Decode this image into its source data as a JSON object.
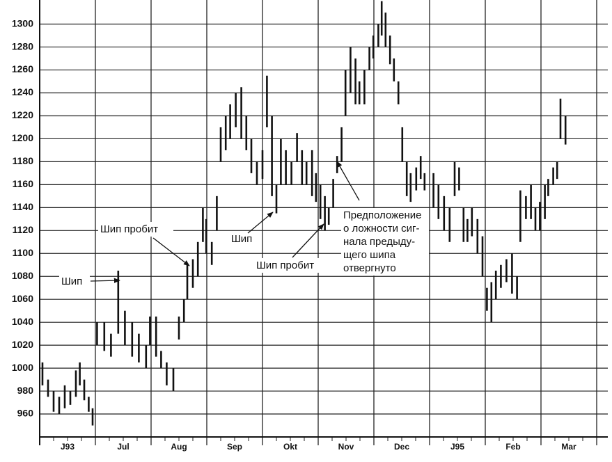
{
  "chart_data": {
    "type": "range_bar",
    "categories": [
      "J93",
      "Jul",
      "Aug",
      "Sep",
      "Okt",
      "Nov",
      "Dec",
      "J95",
      "Feb",
      "Mar"
    ],
    "xlim": [
      0,
      10.2
    ],
    "ylim": [
      940,
      1321
    ],
    "yticks": [
      960,
      980,
      1000,
      1020,
      1040,
      1060,
      1080,
      1100,
      1120,
      1140,
      1160,
      1180,
      1200,
      1220,
      1240,
      1260,
      1280,
      1300
    ],
    "grid": true,
    "color": "#111111",
    "x": [
      0.05,
      0.15,
      0.25,
      0.35,
      0.45,
      0.55,
      0.65,
      0.72,
      0.8,
      0.88,
      0.95,
      1.03,
      1.16,
      1.28,
      1.41,
      1.53,
      1.66,
      1.78,
      1.91,
      1.98,
      2.09,
      2.18,
      2.28,
      2.4,
      2.5,
      2.59,
      2.65,
      2.75,
      2.84,
      2.93,
      2.99,
      3.09,
      3.18,
      3.25,
      3.34,
      3.42,
      3.52,
      3.62,
      3.71,
      3.8,
      3.9,
      4.0,
      4.08,
      4.17,
      4.25,
      4.33,
      4.42,
      4.52,
      4.62,
      4.71,
      4.79,
      4.89,
      4.96,
      5.04,
      5.12,
      5.19,
      5.27,
      5.34,
      5.42,
      5.49,
      5.58,
      5.67,
      5.74,
      5.83,
      5.92,
      5.99,
      6.08,
      6.14,
      6.21,
      6.29,
      6.36,
      6.44,
      6.51,
      6.59,
      6.66,
      6.76,
      6.84,
      6.91,
      7.07,
      7.16,
      7.26,
      7.36,
      7.45,
      7.53,
      7.61,
      7.68,
      7.76,
      7.86,
      7.95,
      8.03,
      8.11,
      8.19,
      8.28,
      8.38,
      8.48,
      8.57,
      8.63,
      8.73,
      8.82,
      8.9,
      8.98,
      9.07,
      9.13,
      9.22,
      9.29,
      9.35,
      9.44
    ],
    "high": [
      1005,
      990,
      980,
      975,
      985,
      980,
      998,
      1005,
      990,
      975,
      965,
      1040,
      1040,
      1030,
      1085,
      1050,
      1040,
      1030,
      1020,
      1045,
      1045,
      1015,
      1005,
      1000,
      1045,
      1060,
      1090,
      1095,
      1110,
      1140,
      1130,
      1110,
      1150,
      1210,
      1220,
      1230,
      1240,
      1245,
      1220,
      1200,
      1180,
      1190,
      1255,
      1220,
      1160,
      1200,
      1190,
      1180,
      1205,
      1190,
      1180,
      1190,
      1170,
      1160,
      1150,
      1140,
      1165,
      1185,
      1210,
      1260,
      1280,
      1270,
      1250,
      1260,
      1280,
      1290,
      1300,
      1320,
      1310,
      1290,
      1270,
      1250,
      1210,
      1180,
      1170,
      1175,
      1185,
      1170,
      1170,
      1160,
      1150,
      1140,
      1180,
      1175,
      1140,
      1130,
      1140,
      1130,
      1115,
      1070,
      1075,
      1085,
      1090,
      1095,
      1100,
      1080,
      1155,
      1150,
      1160,
      1140,
      1145,
      1160,
      1165,
      1175,
      1180,
      1235,
      1220
    ],
    "low": [
      985,
      975,
      962,
      960,
      965,
      968,
      975,
      985,
      972,
      962,
      950,
      1020,
      1015,
      1010,
      1030,
      1020,
      1010,
      1005,
      1000,
      1020,
      1010,
      1000,
      985,
      980,
      1025,
      1040,
      1060,
      1070,
      1080,
      1110,
      1100,
      1090,
      1120,
      1180,
      1190,
      1200,
      1210,
      1200,
      1190,
      1170,
      1160,
      1165,
      1210,
      1150,
      1135,
      1160,
      1160,
      1160,
      1180,
      1160,
      1160,
      1150,
      1145,
      1130,
      1120,
      1125,
      1140,
      1170,
      1180,
      1220,
      1240,
      1230,
      1230,
      1230,
      1260,
      1270,
      1280,
      1290,
      1280,
      1265,
      1250,
      1230,
      1180,
      1150,
      1145,
      1155,
      1165,
      1155,
      1140,
      1130,
      1120,
      1110,
      1150,
      1155,
      1110,
      1110,
      1115,
      1100,
      1080,
      1050,
      1040,
      1060,
      1070,
      1075,
      1065,
      1060,
      1110,
      1130,
      1130,
      1120,
      1120,
      1130,
      1150,
      1160,
      1165,
      1200,
      1195
    ],
    "annotations": [
      {
        "lines": [
          "Шип"
        ]
      },
      {
        "lines": [
          "Шип пробит"
        ]
      },
      {
        "lines": [
          "Шип"
        ]
      },
      {
        "lines": [
          "Шип пробит"
        ]
      },
      {
        "lines": [
          "Предположение",
          "о ложности сиг-",
          "нала предыду-",
          "щего шипа",
          "отвергнуто"
        ]
      }
    ]
  }
}
